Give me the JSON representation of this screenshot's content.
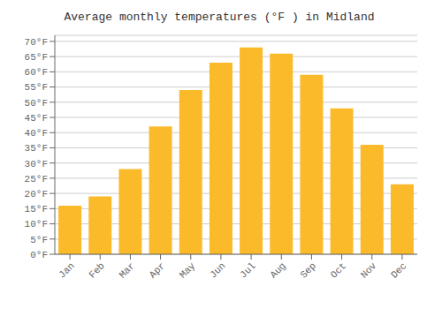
{
  "chart_data": {
    "type": "bar",
    "title": "Average monthly temperatures (°F ) in Midland",
    "categories": [
      "Jan",
      "Feb",
      "Mar",
      "Apr",
      "May",
      "Jun",
      "Jul",
      "Aug",
      "Sep",
      "Oct",
      "Nov",
      "Dec"
    ],
    "values": [
      16,
      19,
      28,
      42,
      54,
      63,
      68,
      66,
      59,
      48,
      36,
      23
    ],
    "color": "#FBBA2A",
    "ylim": [
      0,
      72
    ],
    "yticks": [
      {
        "value": 0,
        "label": "0°F"
      },
      {
        "value": 5,
        "label": "5°F"
      },
      {
        "value": 10,
        "label": "10°F"
      },
      {
        "value": 15,
        "label": "15°F"
      },
      {
        "value": 20,
        "label": "20°F"
      },
      {
        "value": 25,
        "label": "25°F"
      },
      {
        "value": 30,
        "label": "30°F"
      },
      {
        "value": 35,
        "label": "35°F"
      },
      {
        "value": 40,
        "label": "40°F"
      },
      {
        "value": 45,
        "label": "45°F"
      },
      {
        "value": 50,
        "label": "50°F"
      },
      {
        "value": 55,
        "label": "55°F"
      },
      {
        "value": 60,
        "label": "60°F"
      },
      {
        "value": 65,
        "label": "65°F"
      },
      {
        "value": 70,
        "label": "70°F"
      }
    ],
    "grid": true
  }
}
